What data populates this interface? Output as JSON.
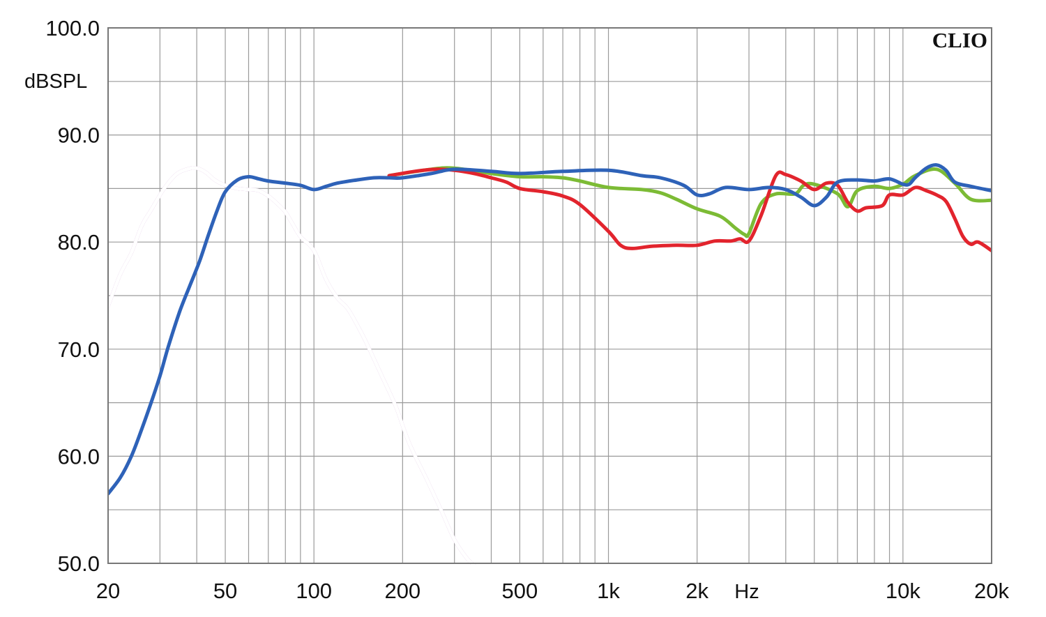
{
  "chart_data": {
    "type": "line",
    "watermark": "CLIO",
    "ylabel": "dBSPL",
    "xlabel": "Hz",
    "xscale": "log",
    "xlim": [
      20,
      20000
    ],
    "ylim": [
      50,
      100
    ],
    "grid": true,
    "yticks": [
      {
        "value": 100,
        "label": "100.0"
      },
      {
        "value": 90,
        "label": "90.0"
      },
      {
        "value": 80,
        "label": "80.0"
      },
      {
        "value": 70,
        "label": "70.0"
      },
      {
        "value": 60,
        "label": "60.0"
      },
      {
        "value": 50,
        "label": "50.0"
      }
    ],
    "xticks": [
      {
        "value": 20,
        "label": "20"
      },
      {
        "value": 50,
        "label": "50"
      },
      {
        "value": 100,
        "label": "100"
      },
      {
        "value": 200,
        "label": "200"
      },
      {
        "value": 500,
        "label": "500"
      },
      {
        "value": 1000,
        "label": "1k"
      },
      {
        "value": 2000,
        "label": "2k"
      },
      {
        "value": 10000,
        "label": "10k"
      },
      {
        "value": 20000,
        "label": "20k"
      }
    ],
    "series": [
      {
        "color": "#b06ab8",
        "double_stroke": true,
        "x": [
          20,
          22,
          24,
          26,
          28,
          31,
          34,
          37,
          40,
          43,
          46,
          50,
          55,
          60,
          65,
          70,
          75,
          80,
          85,
          90,
          100,
          110,
          120,
          130,
          140,
          150,
          170,
          190,
          210,
          240,
          270,
          300,
          330,
          350
        ],
        "y": [
          74,
          77,
          79,
          81.5,
          83,
          85,
          86.3,
          86.8,
          86.9,
          86.5,
          85.8,
          85.3,
          85,
          84.9,
          84.8,
          84.3,
          83.6,
          82.8,
          81.6,
          80.5,
          79.2,
          76.5,
          74.8,
          73.8,
          72.3,
          70.7,
          67.5,
          64.6,
          61.3,
          58,
          55,
          52.2,
          50.5,
          49.8
        ]
      },
      {
        "color": "#7cbb35",
        "x": [
          180,
          250,
          300,
          400,
          500,
          600,
          700,
          800,
          1000,
          1300,
          1500,
          1700,
          2000,
          2400,
          2700,
          2900,
          3000,
          3300,
          3700,
          4300,
          4600,
          5000,
          6000,
          6500,
          7000,
          8000,
          9000,
          10000,
          11000,
          13000,
          15000,
          17000,
          20000
        ],
        "y": [
          86.2,
          86.8,
          86.9,
          86.4,
          86.1,
          86.1,
          86,
          85.7,
          85.1,
          84.9,
          84.6,
          84,
          83.1,
          82.4,
          81.3,
          80.7,
          80.8,
          83.6,
          84.5,
          84.5,
          85.3,
          85.4,
          84.5,
          83.3,
          84.8,
          85.2,
          85,
          85.4,
          86.2,
          86.8,
          85.5,
          84,
          83.9
        ]
      },
      {
        "color": "#e2242d",
        "x": [
          180,
          220,
          260,
          300,
          350,
          400,
          450,
          500,
          600,
          700,
          800,
          1000,
          1100,
          1200,
          1400,
          1700,
          2000,
          2300,
          2600,
          2800,
          3000,
          3300,
          3700,
          4000,
          4500,
          5000,
          5500,
          6000,
          6500,
          7000,
          7500,
          8500,
          9000,
          10000,
          11000,
          12000,
          13000,
          14000,
          15000,
          16000,
          17000,
          18000,
          20000
        ],
        "y": [
          86.2,
          86.6,
          86.8,
          86.7,
          86.4,
          86,
          85.6,
          85,
          84.7,
          84.3,
          83.5,
          81,
          79.7,
          79.4,
          79.6,
          79.7,
          79.7,
          80.1,
          80.1,
          80.3,
          80.1,
          82.5,
          86.2,
          86.3,
          85.7,
          84.9,
          85.5,
          85.3,
          83.7,
          82.9,
          83.2,
          83.4,
          84.4,
          84.4,
          85.1,
          84.8,
          84.4,
          83.8,
          82.2,
          80.5,
          79.8,
          80,
          79.2
        ]
      },
      {
        "color": "#2e62b8",
        "x": [
          20,
          22,
          24,
          26,
          28,
          30,
          32,
          35,
          38,
          41,
          44,
          47,
          50,
          55,
          60,
          65,
          70,
          80,
          90,
          100,
          110,
          120,
          140,
          160,
          180,
          200,
          250,
          300,
          400,
          500,
          700,
          1000,
          1300,
          1500,
          1800,
          2000,
          2200,
          2500,
          3000,
          3500,
          4000,
          4500,
          5000,
          5500,
          6000,
          7000,
          8000,
          9000,
          10000,
          10500,
          11000,
          12000,
          13000,
          14000,
          15000,
          17000,
          20000
        ],
        "y": [
          56.5,
          58,
          60,
          62.5,
          65,
          67.5,
          70.2,
          73.5,
          76,
          78.3,
          80.8,
          83,
          84.7,
          85.8,
          86.1,
          85.9,
          85.7,
          85.5,
          85.3,
          84.9,
          85.2,
          85.5,
          85.8,
          86,
          86,
          86,
          86.4,
          86.8,
          86.6,
          86.4,
          86.6,
          86.7,
          86.2,
          86,
          85.3,
          84.4,
          84.5,
          85.1,
          84.9,
          85.1,
          84.9,
          84.2,
          83.4,
          84.2,
          85.6,
          85.8,
          85.7,
          85.9,
          85.4,
          85.4,
          86,
          86.9,
          87.2,
          86.7,
          85.6,
          85.2,
          84.8
        ]
      }
    ]
  }
}
